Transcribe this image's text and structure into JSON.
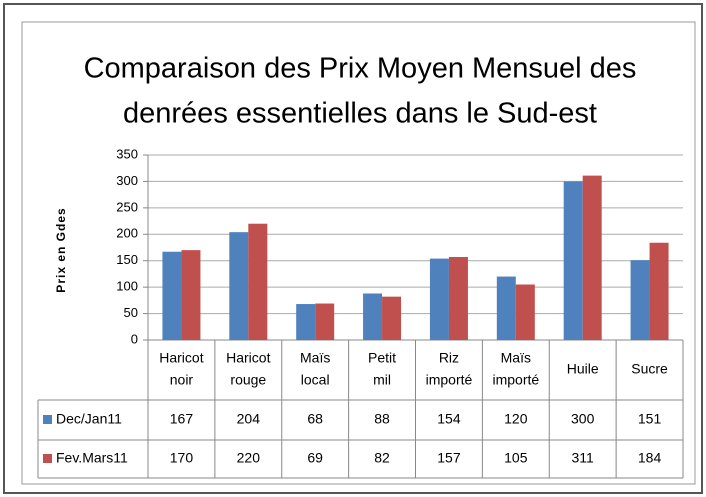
{
  "chart_data": {
    "type": "bar",
    "title": [
      "Comparaison des Prix Moyen Mensuel des",
      "denrées essentielles dans le Sud-est"
    ],
    "y_label": "Prix en Gdes",
    "categories": [
      [
        "Haricot",
        "noir"
      ],
      [
        "Haricot",
        "rouge"
      ],
      [
        "Maïs",
        "local"
      ],
      [
        "Petit",
        "mil"
      ],
      [
        "Riz",
        "importé"
      ],
      [
        "Maïs",
        "importé"
      ],
      [
        "Huile"
      ],
      [
        "Sucre"
      ]
    ],
    "series": [
      {
        "name": "Dec/Jan11",
        "color": "#4f81bd",
        "values": [
          167,
          204,
          68,
          88,
          154,
          120,
          300,
          151
        ]
      },
      {
        "name": "Fev.Mars11",
        "color": "#c0504d",
        "values": [
          170,
          220,
          69,
          82,
          157,
          105,
          311,
          184
        ]
      }
    ],
    "ylim": [
      0,
      350
    ],
    "yticks": [
      0,
      50,
      100,
      150,
      200,
      250,
      300,
      350
    ],
    "grid": true
  }
}
